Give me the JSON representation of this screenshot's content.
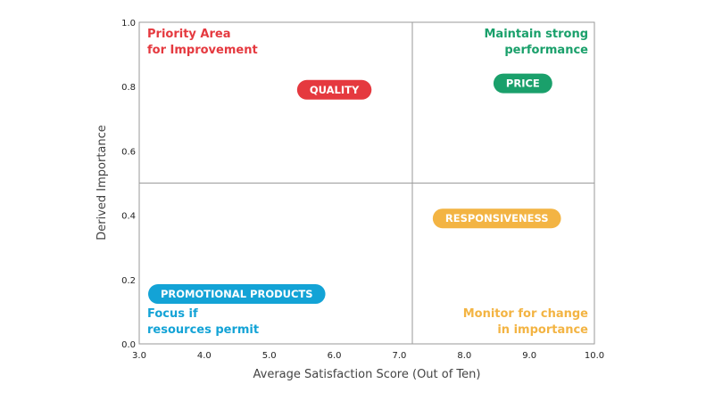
{
  "chart_data": {
    "type": "scatter",
    "title": "",
    "xlabel": "Average Satisfaction Score (Out of Ten)",
    "ylabel": "Derived Importance",
    "xlim": [
      3.0,
      10.0
    ],
    "ylim": [
      0.0,
      1.0
    ],
    "x_ticks": [
      "3.0",
      "4.0",
      "5.0",
      "6.0",
      "7.0",
      "8.0",
      "9.0",
      "10.0"
    ],
    "y_ticks": [
      "0.0",
      "0.2",
      "0.4",
      "0.6",
      "0.8",
      "1.0"
    ],
    "divider": {
      "x": 7.2,
      "y": 0.5
    },
    "points": [
      {
        "label": "QUALITY",
        "x": 6.0,
        "y": 0.79,
        "color": "#e5393f"
      },
      {
        "label": "PRICE",
        "x": 8.9,
        "y": 0.81,
        "color": "#1aa06b"
      },
      {
        "label": "RESPONSIVENESS",
        "x": 8.5,
        "y": 0.39,
        "color": "#f3b443"
      },
      {
        "label": "PROMOTIONAL PRODUCTS",
        "x": 4.5,
        "y": 0.155,
        "color": "#13a3d6"
      }
    ],
    "quadrants": [
      {
        "position": "top-left",
        "lines": [
          "Priority Area",
          "for Improvement"
        ],
        "color": "#e5393f"
      },
      {
        "position": "top-right",
        "lines": [
          "Maintain strong",
          "performance"
        ],
        "color": "#1aa06b"
      },
      {
        "position": "bottom-left",
        "lines": [
          "Focus if",
          "resources permit"
        ],
        "color": "#13a3d6"
      },
      {
        "position": "bottom-right",
        "lines": [
          "Monitor for change",
          "in importance"
        ],
        "color": "#f3b443"
      }
    ]
  }
}
